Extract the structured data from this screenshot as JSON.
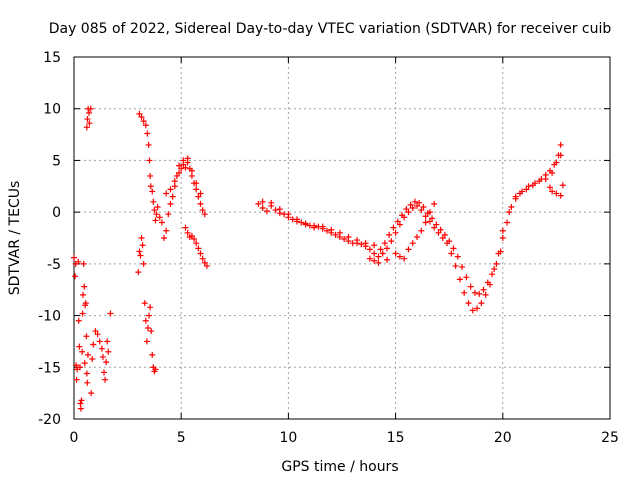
{
  "chart_data": {
    "type": "scatter",
    "title": "Day 085 of 2022, Sidereal Day-to-day VTEC variation (SDTVAR) for receiver cuib",
    "xlabel": "GPS time / hours",
    "ylabel": "SDTVAR / TECUs",
    "xlim": [
      0,
      25
    ],
    "ylim": [
      -20,
      15
    ],
    "xticks": [
      "0",
      "5",
      "10",
      "15",
      "20",
      "25"
    ],
    "yticks": [
      "15",
      "10",
      "5",
      "0",
      "-5",
      "-10",
      "-15",
      "-20"
    ],
    "grid": true,
    "marker": "+",
    "series": [
      {
        "name": "SDTVAR",
        "color": "#ff0000",
        "points": [
          [
            0.0,
            -4.4
          ],
          [
            0.05,
            -6.2
          ],
          [
            0.08,
            -5.0
          ],
          [
            0.1,
            -14.8
          ],
          [
            0.12,
            -16.2
          ],
          [
            0.15,
            -15.2
          ],
          [
            0.2,
            -4.8
          ],
          [
            0.22,
            -10.5
          ],
          [
            0.25,
            -13.0
          ],
          [
            0.28,
            -15.0
          ],
          [
            0.3,
            -18.5
          ],
          [
            0.32,
            -19.0
          ],
          [
            0.35,
            -18.2
          ],
          [
            0.38,
            -13.5
          ],
          [
            0.4,
            -9.8
          ],
          [
            0.42,
            -8.0
          ],
          [
            0.45,
            -5.0
          ],
          [
            0.48,
            -7.2
          ],
          [
            0.5,
            -14.6
          ],
          [
            0.52,
            -9.0
          ],
          [
            0.55,
            -8.8
          ],
          [
            0.58,
            -12.0
          ],
          [
            0.6,
            -15.6
          ],
          [
            0.62,
            -16.5
          ],
          [
            0.65,
            -13.8
          ],
          [
            0.6,
            8.2
          ],
          [
            0.63,
            9.0
          ],
          [
            0.66,
            10.0
          ],
          [
            0.7,
            9.6
          ],
          [
            0.72,
            8.6
          ],
          [
            0.78,
            10.0
          ],
          [
            0.8,
            -17.5
          ],
          [
            0.85,
            -14.2
          ],
          [
            0.9,
            -12.8
          ],
          [
            1.0,
            -11.5
          ],
          [
            1.1,
            -11.8
          ],
          [
            1.2,
            -12.5
          ],
          [
            1.3,
            -13.2
          ],
          [
            1.35,
            -14.0
          ],
          [
            1.4,
            -15.5
          ],
          [
            1.45,
            -16.2
          ],
          [
            1.5,
            -14.5
          ],
          [
            1.55,
            -12.5
          ],
          [
            1.6,
            -13.5
          ],
          [
            1.7,
            -9.8
          ],
          [
            3.0,
            -5.8
          ],
          [
            3.05,
            -3.8
          ],
          [
            3.1,
            -4.2
          ],
          [
            3.15,
            -2.5
          ],
          [
            3.2,
            -3.2
          ],
          [
            3.25,
            -5.0
          ],
          [
            3.3,
            -8.8
          ],
          [
            3.35,
            -10.5
          ],
          [
            3.4,
            -12.5
          ],
          [
            3.45,
            -11.2
          ],
          [
            3.5,
            -10.0
          ],
          [
            3.55,
            -9.2
          ],
          [
            3.6,
            -11.5
          ],
          [
            3.65,
            -13.8
          ],
          [
            3.7,
            -15.0
          ],
          [
            3.75,
            -15.4
          ],
          [
            3.8,
            -15.2
          ],
          [
            3.05,
            9.5
          ],
          [
            3.15,
            9.2
          ],
          [
            3.25,
            8.8
          ],
          [
            3.35,
            8.4
          ],
          [
            3.42,
            7.6
          ],
          [
            3.48,
            6.5
          ],
          [
            3.52,
            5.0
          ],
          [
            3.55,
            3.5
          ],
          [
            3.58,
            2.5
          ],
          [
            3.65,
            2.0
          ],
          [
            3.7,
            1.0
          ],
          [
            3.75,
            0.2
          ],
          [
            3.8,
            -0.8
          ],
          [
            3.85,
            -0.2
          ],
          [
            3.9,
            0.5
          ],
          [
            4.0,
            -0.5
          ],
          [
            4.1,
            -1.0
          ],
          [
            4.2,
            -2.5
          ],
          [
            4.3,
            -1.8
          ],
          [
            4.4,
            -0.2
          ],
          [
            4.5,
            0.8
          ],
          [
            4.6,
            1.5
          ],
          [
            4.7,
            2.5
          ],
          [
            4.8,
            3.5
          ],
          [
            4.9,
            3.8
          ],
          [
            5.0,
            4.2
          ],
          [
            5.1,
            4.6
          ],
          [
            5.2,
            4.3
          ],
          [
            5.3,
            4.8
          ],
          [
            5.4,
            4.2
          ],
          [
            5.5,
            3.5
          ],
          [
            5.6,
            2.8
          ],
          [
            5.7,
            2.2
          ],
          [
            5.8,
            1.5
          ],
          [
            5.9,
            0.8
          ],
          [
            6.0,
            0.2
          ],
          [
            6.1,
            -0.2
          ],
          [
            5.2,
            -1.5
          ],
          [
            5.3,
            -2.0
          ],
          [
            5.4,
            -2.4
          ],
          [
            5.5,
            -2.3
          ],
          [
            5.6,
            -2.6
          ],
          [
            5.7,
            -3.0
          ],
          [
            5.8,
            -3.5
          ],
          [
            5.9,
            -4.0
          ],
          [
            6.0,
            -4.5
          ],
          [
            6.1,
            -4.9
          ],
          [
            6.2,
            -5.2
          ],
          [
            4.3,
            1.8
          ],
          [
            4.5,
            2.2
          ],
          [
            4.7,
            3.0
          ],
          [
            4.9,
            4.5
          ],
          [
            5.1,
            5.0
          ],
          [
            5.3,
            5.2
          ],
          [
            5.5,
            4.0
          ],
          [
            5.7,
            2.8
          ],
          [
            5.9,
            1.8
          ],
          [
            8.6,
            0.8
          ],
          [
            8.8,
            0.4
          ],
          [
            9.0,
            0.1
          ],
          [
            9.2,
            0.6
          ],
          [
            9.4,
            0.2
          ],
          [
            9.6,
            -0.1
          ],
          [
            9.8,
            -0.2
          ],
          [
            10.0,
            -0.5
          ],
          [
            10.2,
            -0.7
          ],
          [
            10.4,
            -0.9
          ],
          [
            10.6,
            -1.0
          ],
          [
            10.8,
            -1.2
          ],
          [
            11.0,
            -1.3
          ],
          [
            11.2,
            -1.5
          ],
          [
            11.4,
            -1.4
          ],
          [
            11.6,
            -1.6
          ],
          [
            11.8,
            -1.8
          ],
          [
            12.0,
            -2.0
          ],
          [
            12.2,
            -2.2
          ],
          [
            12.4,
            -2.4
          ],
          [
            12.6,
            -2.6
          ],
          [
            12.8,
            -2.8
          ],
          [
            13.0,
            -3.0
          ],
          [
            13.2,
            -3.0
          ],
          [
            13.4,
            -3.1
          ],
          [
            13.6,
            -3.3
          ],
          [
            13.8,
            -3.6
          ],
          [
            14.0,
            -4.0
          ],
          [
            14.2,
            -4.3
          ],
          [
            14.4,
            -4.0
          ],
          [
            14.6,
            -3.5
          ],
          [
            14.8,
            -2.8
          ],
          [
            15.0,
            -2.0
          ],
          [
            15.2,
            -1.2
          ],
          [
            15.4,
            -0.5
          ],
          [
            15.6,
            0.0
          ],
          [
            15.8,
            0.4
          ],
          [
            16.0,
            0.6
          ],
          [
            16.2,
            0.2
          ],
          [
            16.4,
            -0.4
          ],
          [
            16.6,
            -0.9
          ],
          [
            16.8,
            -1.5
          ],
          [
            17.0,
            -2.0
          ],
          [
            17.2,
            -2.5
          ],
          [
            17.4,
            -3.0
          ],
          [
            17.6,
            -4.0
          ],
          [
            17.8,
            -5.2
          ],
          [
            18.0,
            -6.5
          ],
          [
            18.2,
            -7.8
          ],
          [
            18.4,
            -8.8
          ],
          [
            18.6,
            -9.5
          ],
          [
            18.8,
            -9.3
          ],
          [
            19.0,
            -8.8
          ],
          [
            19.2,
            -8.0
          ],
          [
            19.4,
            -7.0
          ],
          [
            19.6,
            -5.5
          ],
          [
            19.8,
            -4.0
          ],
          [
            20.0,
            -2.5
          ],
          [
            20.2,
            -1.0
          ],
          [
            20.4,
            0.5
          ],
          [
            20.6,
            1.5
          ],
          [
            8.8,
            1.0
          ],
          [
            9.2,
            0.9
          ],
          [
            9.6,
            0.3
          ],
          [
            10.0,
            -0.2
          ],
          [
            10.4,
            -0.7
          ],
          [
            10.8,
            -1.1
          ],
          [
            11.2,
            -1.3
          ],
          [
            11.6,
            -1.4
          ],
          [
            12.0,
            -1.7
          ],
          [
            12.4,
            -2.0
          ],
          [
            12.8,
            -2.4
          ],
          [
            13.2,
            -2.7
          ],
          [
            13.6,
            -3.0
          ],
          [
            14.0,
            -3.2
          ],
          [
            14.3,
            -3.6
          ],
          [
            14.5,
            -3.0
          ],
          [
            14.7,
            -2.2
          ],
          [
            14.9,
            -1.5
          ],
          [
            15.1,
            -0.9
          ],
          [
            15.3,
            -0.3
          ],
          [
            15.5,
            0.3
          ],
          [
            15.7,
            0.7
          ],
          [
            15.9,
            1.0
          ],
          [
            16.1,
            0.9
          ],
          [
            16.3,
            0.5
          ],
          [
            16.5,
            -0.1
          ],
          [
            16.7,
            -0.6
          ],
          [
            16.9,
            -1.2
          ],
          [
            17.1,
            -1.7
          ],
          [
            17.3,
            -2.2
          ],
          [
            17.5,
            -2.8
          ],
          [
            17.7,
            -3.5
          ],
          [
            17.9,
            -4.3
          ],
          [
            18.1,
            -5.3
          ],
          [
            18.3,
            -6.3
          ],
          [
            18.5,
            -7.2
          ],
          [
            18.7,
            -7.8
          ],
          [
            18.9,
            -7.9
          ],
          [
            19.1,
            -7.5
          ],
          [
            19.3,
            -6.8
          ],
          [
            19.5,
            -6.0
          ],
          [
            19.7,
            -5.0
          ],
          [
            19.9,
            -3.8
          ],
          [
            13.8,
            -4.5
          ],
          [
            14.0,
            -4.7
          ],
          [
            14.2,
            -4.9
          ],
          [
            14.6,
            -4.6
          ],
          [
            15.0,
            -4.0
          ],
          [
            15.2,
            -4.3
          ],
          [
            15.4,
            -4.5
          ],
          [
            15.6,
            -3.6
          ],
          [
            15.8,
            -3.0
          ],
          [
            16.0,
            -2.4
          ],
          [
            16.2,
            -1.8
          ],
          [
            16.4,
            -1.0
          ],
          [
            16.6,
            0.0
          ],
          [
            16.8,
            0.8
          ],
          [
            20.0,
            -1.8
          ],
          [
            20.3,
            0.0
          ],
          [
            20.6,
            1.3
          ],
          [
            20.9,
            2.0
          ],
          [
            21.2,
            2.5
          ],
          [
            21.5,
            2.8
          ],
          [
            21.8,
            3.2
          ],
          [
            22.0,
            3.6
          ],
          [
            22.2,
            4.0
          ],
          [
            22.4,
            4.6
          ],
          [
            22.6,
            5.5
          ],
          [
            22.7,
            6.5
          ],
          [
            20.8,
            1.8
          ],
          [
            21.1,
            2.2
          ],
          [
            21.4,
            2.6
          ],
          [
            21.7,
            3.0
          ],
          [
            22.0,
            3.2
          ],
          [
            22.3,
            3.8
          ],
          [
            22.5,
            4.8
          ],
          [
            22.7,
            5.5
          ],
          [
            22.2,
            2.4
          ],
          [
            22.3,
            2.0
          ],
          [
            22.5,
            1.8
          ],
          [
            22.7,
            1.6
          ],
          [
            22.8,
            2.6
          ]
        ]
      }
    ]
  }
}
